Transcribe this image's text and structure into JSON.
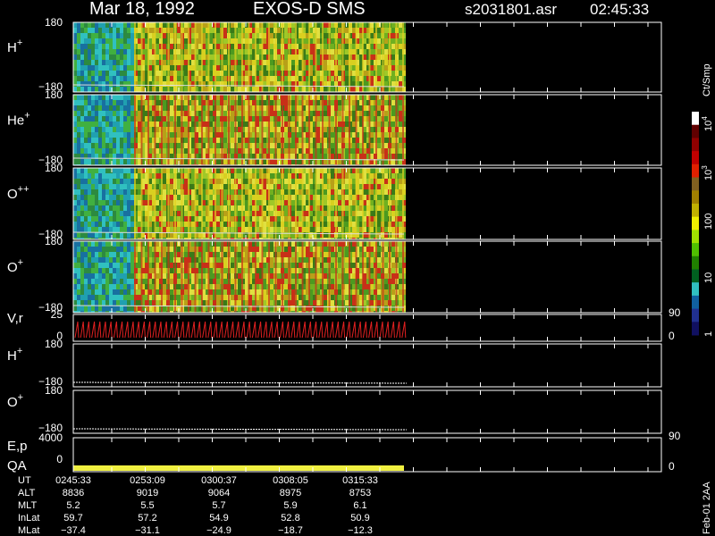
{
  "header": {
    "date": "Mar 18, 1992",
    "instrument": "EXOS-D SMS",
    "file": "s2031801.asr",
    "time": "02:45:33"
  },
  "panels": [
    {
      "label": "H",
      "sup": "+",
      "top": "180",
      "bottom": "−180"
    },
    {
      "label": "He",
      "sup": "+",
      "top": "180",
      "bottom": "−180"
    },
    {
      "label": "O",
      "sup": "++",
      "top": "180",
      "bottom": "−180"
    },
    {
      "label": "O",
      "sup": "+",
      "top": "180",
      "bottom": "−180"
    },
    {
      "label": "V,r",
      "top": "25",
      "bottom": "0",
      "right_top": "90",
      "right_bottom": "0"
    },
    {
      "label": "H",
      "sup": "+",
      "top": "180",
      "bottom": "−180"
    },
    {
      "label": "O",
      "sup": "+",
      "top": "180",
      "bottom": "−180"
    },
    {
      "label": "E,p",
      "label2": "QA",
      "top": "4000",
      "bottom": "0",
      "right_top": "90",
      "right_bottom": "0"
    }
  ],
  "colorbar": {
    "unit": "Ct/Smp",
    "ticks": [
      {
        "base": "10",
        "exp": "4"
      },
      {
        "base": "10",
        "exp": "3"
      },
      {
        "base": "100"
      },
      {
        "base": "10"
      },
      {
        "base": "1"
      }
    ]
  },
  "footer": {
    "rows": [
      [
        "UT",
        "0245:33",
        "0253:09",
        "0300:37",
        "0308:05",
        "0315:33"
      ],
      [
        "ALT",
        "8836",
        "9019",
        "9064",
        "8975",
        "8753"
      ],
      [
        "MLT",
        "5.2",
        "5.5",
        "5.7",
        "5.9",
        "6.1"
      ],
      [
        "InLat",
        "59.7",
        "57.2",
        "54.9",
        "52.8",
        "50.9"
      ],
      [
        "MLat",
        "−37.4",
        "−31.1",
        "−24.9",
        "−18.7",
        "−12.3"
      ]
    ]
  },
  "version": "Feb-01 2AA"
}
